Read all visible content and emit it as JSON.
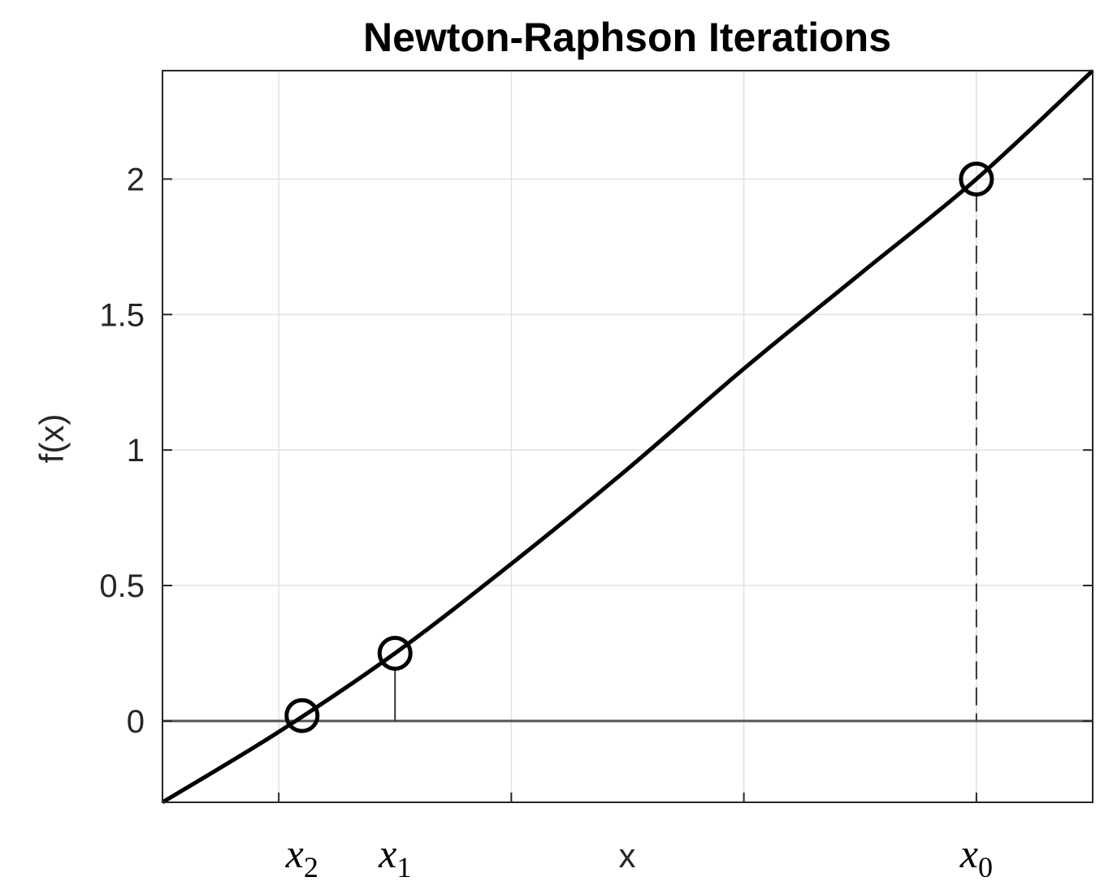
{
  "chart_data": {
    "type": "line",
    "title": "Newton-Raphson Iterations",
    "xlabel": "x",
    "ylabel": "f(x)",
    "xlim": [
      -0.5,
      3.5
    ],
    "ylim": [
      -0.3,
      2.4
    ],
    "grid": true,
    "yticks": [
      0,
      0.5,
      1,
      1.5,
      2
    ],
    "ytick_labels": [
      "0",
      "0.5",
      "1",
      "1.5",
      "2"
    ],
    "x_gridlines": [
      0,
      1,
      2,
      3
    ],
    "xticks": [
      {
        "value": 0.1,
        "base": "x",
        "sub": "2"
      },
      {
        "value": 0.5,
        "base": "x",
        "sub": "1"
      },
      {
        "value": 3.0,
        "base": "x",
        "sub": "0"
      }
    ],
    "curve": {
      "x": [
        -0.5,
        0.0,
        0.5,
        1.0,
        1.5,
        2.0,
        2.5,
        3.0,
        3.5
      ],
      "y": [
        -0.3,
        -0.04,
        0.25,
        0.58,
        0.93,
        1.3,
        1.65,
        2.0,
        2.4
      ]
    },
    "iterates": [
      {
        "name": "x0",
        "x": 3.0,
        "y": 2.0
      },
      {
        "name": "x1",
        "x": 0.5,
        "y": 0.25
      },
      {
        "name": "x2",
        "x": 0.1,
        "y": 0.02
      }
    ],
    "colors": {
      "curve": "#000000",
      "grid": "#e0e0e0",
      "axis": "#262626",
      "zero_line": "#555555"
    }
  }
}
